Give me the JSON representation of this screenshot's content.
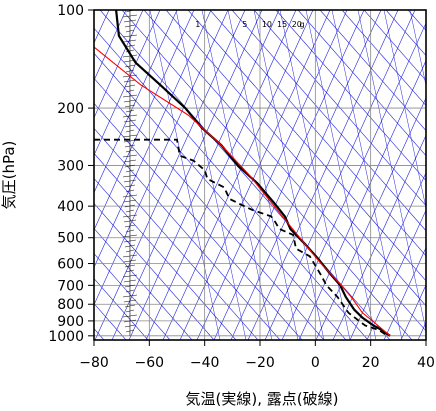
{
  "chart_data": {
    "type": "line",
    "title": "",
    "xlabel": "気温(実線), 露点(破線)",
    "ylabel": "気圧(hPa)",
    "xlim": [
      -80,
      40
    ],
    "ylim": [
      1030,
      100
    ],
    "y_scale": "log",
    "x_ticks": [
      -80,
      -60,
      -40,
      -20,
      0,
      20,
      40
    ],
    "x_tick_labels": [
      "−80",
      "−60",
      "−40",
      "−20",
      "0",
      "20",
      "40"
    ],
    "y_ticks": [
      100,
      200,
      300,
      400,
      500,
      600,
      700,
      800,
      900,
      1000
    ],
    "y_tick_labels": [
      "100",
      "200",
      "300",
      "400",
      "500",
      "600",
      "700",
      "800",
      "900",
      "1000"
    ],
    "mixing_ratio_labels": [
      {
        "text": "1",
        "x": -42.5
      },
      {
        "text": "5",
        "x": -25.5
      },
      {
        "text": "10",
        "x": -17.5
      },
      {
        "text": "15",
        "x": -12.0
      },
      {
        "text": "20",
        "x": -6.7
      },
      {
        "text": "g",
        "x": -4.8
      }
    ],
    "colors": {
      "temperature": "#000000",
      "dewpoint": "#000000",
      "parcel": "#ff0000",
      "guide_lines": "#2222dd",
      "grid": "#888888"
    },
    "series": [
      {
        "style": "solid",
        "points": [
          [
            -72,
            100
          ],
          [
            -71,
            120
          ],
          [
            -65,
            145
          ],
          [
            -56,
            170
          ],
          [
            -47,
            200
          ],
          [
            -41,
            230
          ],
          [
            -34,
            260
          ],
          [
            -28,
            300
          ],
          [
            -21,
            340
          ],
          [
            -15,
            390
          ],
          [
            -11,
            430
          ],
          [
            -9,
            470
          ],
          [
            -4,
            520
          ],
          [
            1,
            580
          ],
          [
            5,
            640
          ],
          [
            9,
            700
          ],
          [
            11,
            760
          ],
          [
            14,
            830
          ],
          [
            17,
            880
          ],
          [
            21,
            930
          ],
          [
            24,
            960
          ],
          [
            27,
            1000
          ]
        ]
      },
      {
        "style": "dashed",
        "points": [
          [
            -80,
            250
          ],
          [
            -72,
            250
          ],
          [
            -50,
            250
          ],
          [
            -49,
            280
          ],
          [
            -44,
            290
          ],
          [
            -40,
            310
          ],
          [
            -39,
            330
          ],
          [
            -33,
            350
          ],
          [
            -31,
            380
          ],
          [
            -27,
            395
          ],
          [
            -23,
            410
          ],
          [
            -16,
            430
          ],
          [
            -15,
            440
          ],
          [
            -13,
            470
          ],
          [
            -8,
            490
          ],
          [
            -7,
            540
          ],
          [
            -2,
            570
          ],
          [
            2,
            650
          ],
          [
            4,
            700
          ],
          [
            8,
            760
          ],
          [
            12,
            850
          ],
          [
            18,
            930
          ],
          [
            23,
            960
          ],
          [
            26,
            1000
          ]
        ]
      },
      {
        "style": "parcel",
        "points": [
          [
            -80,
            130
          ],
          [
            -63,
            170
          ],
          [
            -46,
            210
          ],
          [
            -34,
            260
          ],
          [
            -24,
            320
          ],
          [
            -17,
            380
          ],
          [
            -10,
            450
          ],
          [
            -4,
            520
          ],
          [
            2,
            600
          ],
          [
            8,
            680
          ],
          [
            13,
            760
          ],
          [
            17,
            850
          ],
          [
            22,
            920
          ],
          [
            27,
            1000
          ]
        ]
      }
    ],
    "wind_barbs": {
      "x": -67,
      "from_pressure": 100,
      "to_pressure": 1000
    }
  }
}
